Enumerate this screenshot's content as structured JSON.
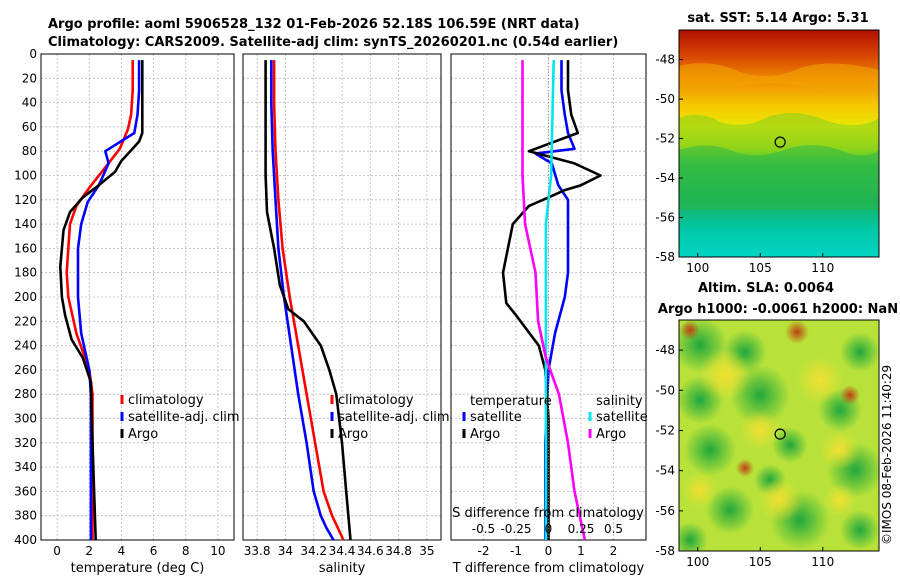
{
  "titles": {
    "line1": "Argo profile: aoml 5906528_132 01-Feb-2026 52.18S 106.59E (NRT data)",
    "line2": "Climatology: CARS2009. Satellite-adj clim: synTS_20260201.nc (0.54d earlier)"
  },
  "side_label": "©IMOS 08-Feb-2026 11:40:29",
  "colors": {
    "clim": "#ff0000",
    "sat": "#0000ff",
    "argo": "#000000",
    "sal_sat": "#00e5ee",
    "sal_argo": "#ff00ff",
    "grid": "#b8b8c8"
  },
  "chart_data": [
    {
      "type": "line",
      "name": "temperature",
      "xlabel": "temperature (deg C)",
      "ylabel": "",
      "xlim": [
        -1,
        11
      ],
      "ylim": [
        400,
        0
      ],
      "xticks": [
        0,
        2,
        4,
        6,
        8,
        10
      ],
      "xtick_labels": [
        "0",
        "2",
        "4",
        "6",
        "8",
        "10"
      ],
      "yticks": [
        0,
        20,
        40,
        60,
        80,
        100,
        120,
        140,
        160,
        180,
        200,
        220,
        240,
        260,
        280,
        300,
        320,
        340,
        360,
        380,
        400
      ],
      "ytick_labels": [
        "0",
        "20",
        "40",
        "60",
        "80",
        "100",
        "120",
        "140",
        "160",
        "180",
        "200",
        "220",
        "240",
        "260",
        "280",
        "300",
        "320",
        "340",
        "360",
        "380",
        "400"
      ],
      "grid": true,
      "legend": {
        "position": "middle-right",
        "entries": [
          "climatology",
          "satellite-adj. clim",
          "Argo"
        ]
      },
      "series": [
        {
          "name": "climatology",
          "color": "#ff0000",
          "x": [
            4.7,
            4.7,
            4.6,
            4.4,
            3.9,
            2.9,
            2.0,
            1.2,
            0.8,
            0.7,
            0.6,
            0.7,
            1.2,
            2.0,
            2.2,
            2.2,
            2.2,
            2.2
          ],
          "y": [
            5,
            30,
            50,
            62,
            78,
            95,
            110,
            125,
            140,
            160,
            180,
            200,
            230,
            260,
            280,
            320,
            360,
            400
          ]
        },
        {
          "name": "satellite-adj. clim",
          "color": "#0000ff",
          "x": [
            5.1,
            5.1,
            5.0,
            4.8,
            3.0,
            3.2,
            2.6,
            1.9,
            1.5,
            1.3,
            1.3,
            1.3,
            1.5,
            2.0,
            2.1,
            2.1,
            2.1,
            2.1
          ],
          "y": [
            5,
            30,
            50,
            65,
            80,
            90,
            108,
            122,
            140,
            160,
            180,
            200,
            230,
            260,
            280,
            320,
            360,
            400
          ]
        },
        {
          "name": "Argo",
          "color": "#000000",
          "x": [
            5.3,
            5.3,
            5.3,
            5.3,
            5.1,
            4.0,
            3.6,
            2.4,
            1.6,
            0.8,
            0.4,
            0.2,
            0.3,
            0.5,
            0.9,
            1.6,
            2.1,
            2.2,
            2.3,
            2.4
          ],
          "y": [
            5,
            30,
            50,
            65,
            72,
            88,
            97,
            110,
            118,
            130,
            145,
            175,
            200,
            215,
            235,
            250,
            270,
            320,
            360,
            400
          ]
        }
      ]
    },
    {
      "type": "line",
      "name": "salinity",
      "xlabel": "salinity",
      "xlim": [
        33.7,
        35.1
      ],
      "ylim": [
        400,
        0
      ],
      "xticks": [
        33.8,
        34.0,
        34.2,
        34.4,
        34.6,
        34.8,
        35.0
      ],
      "xtick_labels": [
        "33.8",
        "34",
        "34.2",
        "34.4",
        "34.6",
        "34.8",
        "35"
      ],
      "grid": true,
      "legend": {
        "position": "middle-right",
        "entries": [
          "climatology",
          "satellite-adj. clim",
          "Argo"
        ]
      },
      "series": [
        {
          "name": "climatology",
          "color": "#ff0000",
          "x": [
            33.92,
            33.92,
            33.93,
            33.95,
            33.98,
            34.03,
            34.09,
            34.15,
            34.21,
            34.27,
            34.33,
            34.37,
            34.41
          ],
          "y": [
            5,
            40,
            80,
            120,
            160,
            200,
            240,
            280,
            320,
            360,
            380,
            390,
            400
          ]
        },
        {
          "name": "satellite-adj. clim",
          "color": "#0000ff",
          "x": [
            33.9,
            33.9,
            33.91,
            33.93,
            33.95,
            33.99,
            34.04,
            34.09,
            34.15,
            34.2,
            34.25,
            34.29,
            34.34
          ],
          "y": [
            5,
            40,
            80,
            120,
            160,
            200,
            240,
            280,
            320,
            360,
            380,
            390,
            400
          ]
        },
        {
          "name": "Argo",
          "color": "#000000",
          "x": [
            33.86,
            33.86,
            33.86,
            33.87,
            33.92,
            33.96,
            34.02,
            34.13,
            34.25,
            34.31,
            34.36,
            34.4,
            34.43,
            34.46
          ],
          "y": [
            5,
            60,
            100,
            130,
            160,
            190,
            210,
            220,
            240,
            260,
            280,
            320,
            360,
            400
          ]
        }
      ]
    },
    {
      "type": "line",
      "name": "difference",
      "xlabel": "T difference from climatology",
      "secondary_label": "S difference from climatology",
      "xlim": [
        -3,
        3
      ],
      "ylim": [
        400,
        0
      ],
      "xticks": [
        -2,
        -1,
        0,
        1,
        2
      ],
      "xtick_labels": [
        "-2",
        "-1",
        "0",
        "1",
        "2"
      ],
      "secondary_xtick_labels": [
        "-0.5",
        "-0.25",
        "0",
        "0.25",
        "0.5"
      ],
      "grid": true,
      "legend": {
        "position": "middle",
        "temperature_title": "temperature",
        "salinity_title": "salinity",
        "entries": [
          "satellite",
          "Argo",
          "satellite",
          "Argo"
        ]
      },
      "series": [
        {
          "name": "temperature satellite",
          "color": "#0000ff",
          "x": [
            0.4,
            0.4,
            0.5,
            0.6,
            0.8,
            -0.4,
            0.1,
            0.3,
            0.6,
            0.6,
            0.6,
            0.5,
            0.2,
            0.0,
            -0.1,
            -0.1
          ],
          "y": [
            5,
            30,
            50,
            65,
            78,
            82,
            90,
            108,
            120,
            150,
            180,
            200,
            230,
            260,
            320,
            400
          ]
        },
        {
          "name": "temperature Argo",
          "color": "#000000",
          "x": [
            0.6,
            0.6,
            0.7,
            0.9,
            -0.6,
            0.8,
            1.6,
            1.0,
            0.5,
            0.0,
            -0.6,
            -1.1,
            -1.4,
            -1.3,
            -1.0,
            -0.3,
            -0.1,
            0.0,
            0.0,
            0.0
          ],
          "y": [
            5,
            30,
            50,
            65,
            80,
            90,
            100,
            108,
            112,
            118,
            125,
            140,
            180,
            205,
            215,
            240,
            260,
            300,
            350,
            400
          ]
        },
        {
          "name": "salinity satellite",
          "color": "#00e5ee",
          "x": [
            0.04,
            0.02,
            -0.02,
            -0.02,
            -0.02,
            -0.02
          ],
          "y": [
            5,
            100,
            140,
            220,
            300,
            400
          ]
        },
        {
          "name": "salinity Argo",
          "color": "#ff00ff",
          "x": [
            -0.2,
            -0.2,
            -0.2,
            -0.18,
            -0.1,
            -0.08,
            -0.02,
            0.08,
            0.15,
            0.2,
            0.28
          ],
          "y": [
            5,
            50,
            100,
            140,
            180,
            220,
            250,
            280,
            320,
            360,
            400
          ]
        }
      ]
    },
    {
      "type": "heatmap",
      "name": "sst_map",
      "title": "sat. SST: 5.14 Argo: 5.31",
      "xlim": [
        98.5,
        114.5
      ],
      "ylim": [
        -58,
        -46.5
      ],
      "xticks": [
        100,
        105,
        110
      ],
      "xtick_labels": [
        "100",
        "105",
        "110"
      ],
      "yticks": [
        -48,
        -50,
        -52,
        -54,
        -56,
        -58
      ],
      "ytick_labels": [
        "-48",
        "-50",
        "-52",
        "-54",
        "-56",
        "-58"
      ],
      "marker": {
        "lon": 106.59,
        "lat": -52.18
      }
    },
    {
      "type": "heatmap",
      "name": "sla_map",
      "title": "Altim. SLA: 0.0064",
      "subtitle": "Argo h1000: -0.0061 h2000: NaN",
      "xlim": [
        98.5,
        114.5
      ],
      "ylim": [
        -58,
        -46.5
      ],
      "xticks": [
        100,
        105,
        110
      ],
      "xtick_labels": [
        "100",
        "105",
        "110"
      ],
      "yticks": [
        -48,
        -50,
        -52,
        -54,
        -56,
        -58
      ],
      "ytick_labels": [
        "-48",
        "-50",
        "-52",
        "-54",
        "-56",
        "-58"
      ],
      "marker": {
        "lon": 106.59,
        "lat": -52.18
      }
    }
  ]
}
